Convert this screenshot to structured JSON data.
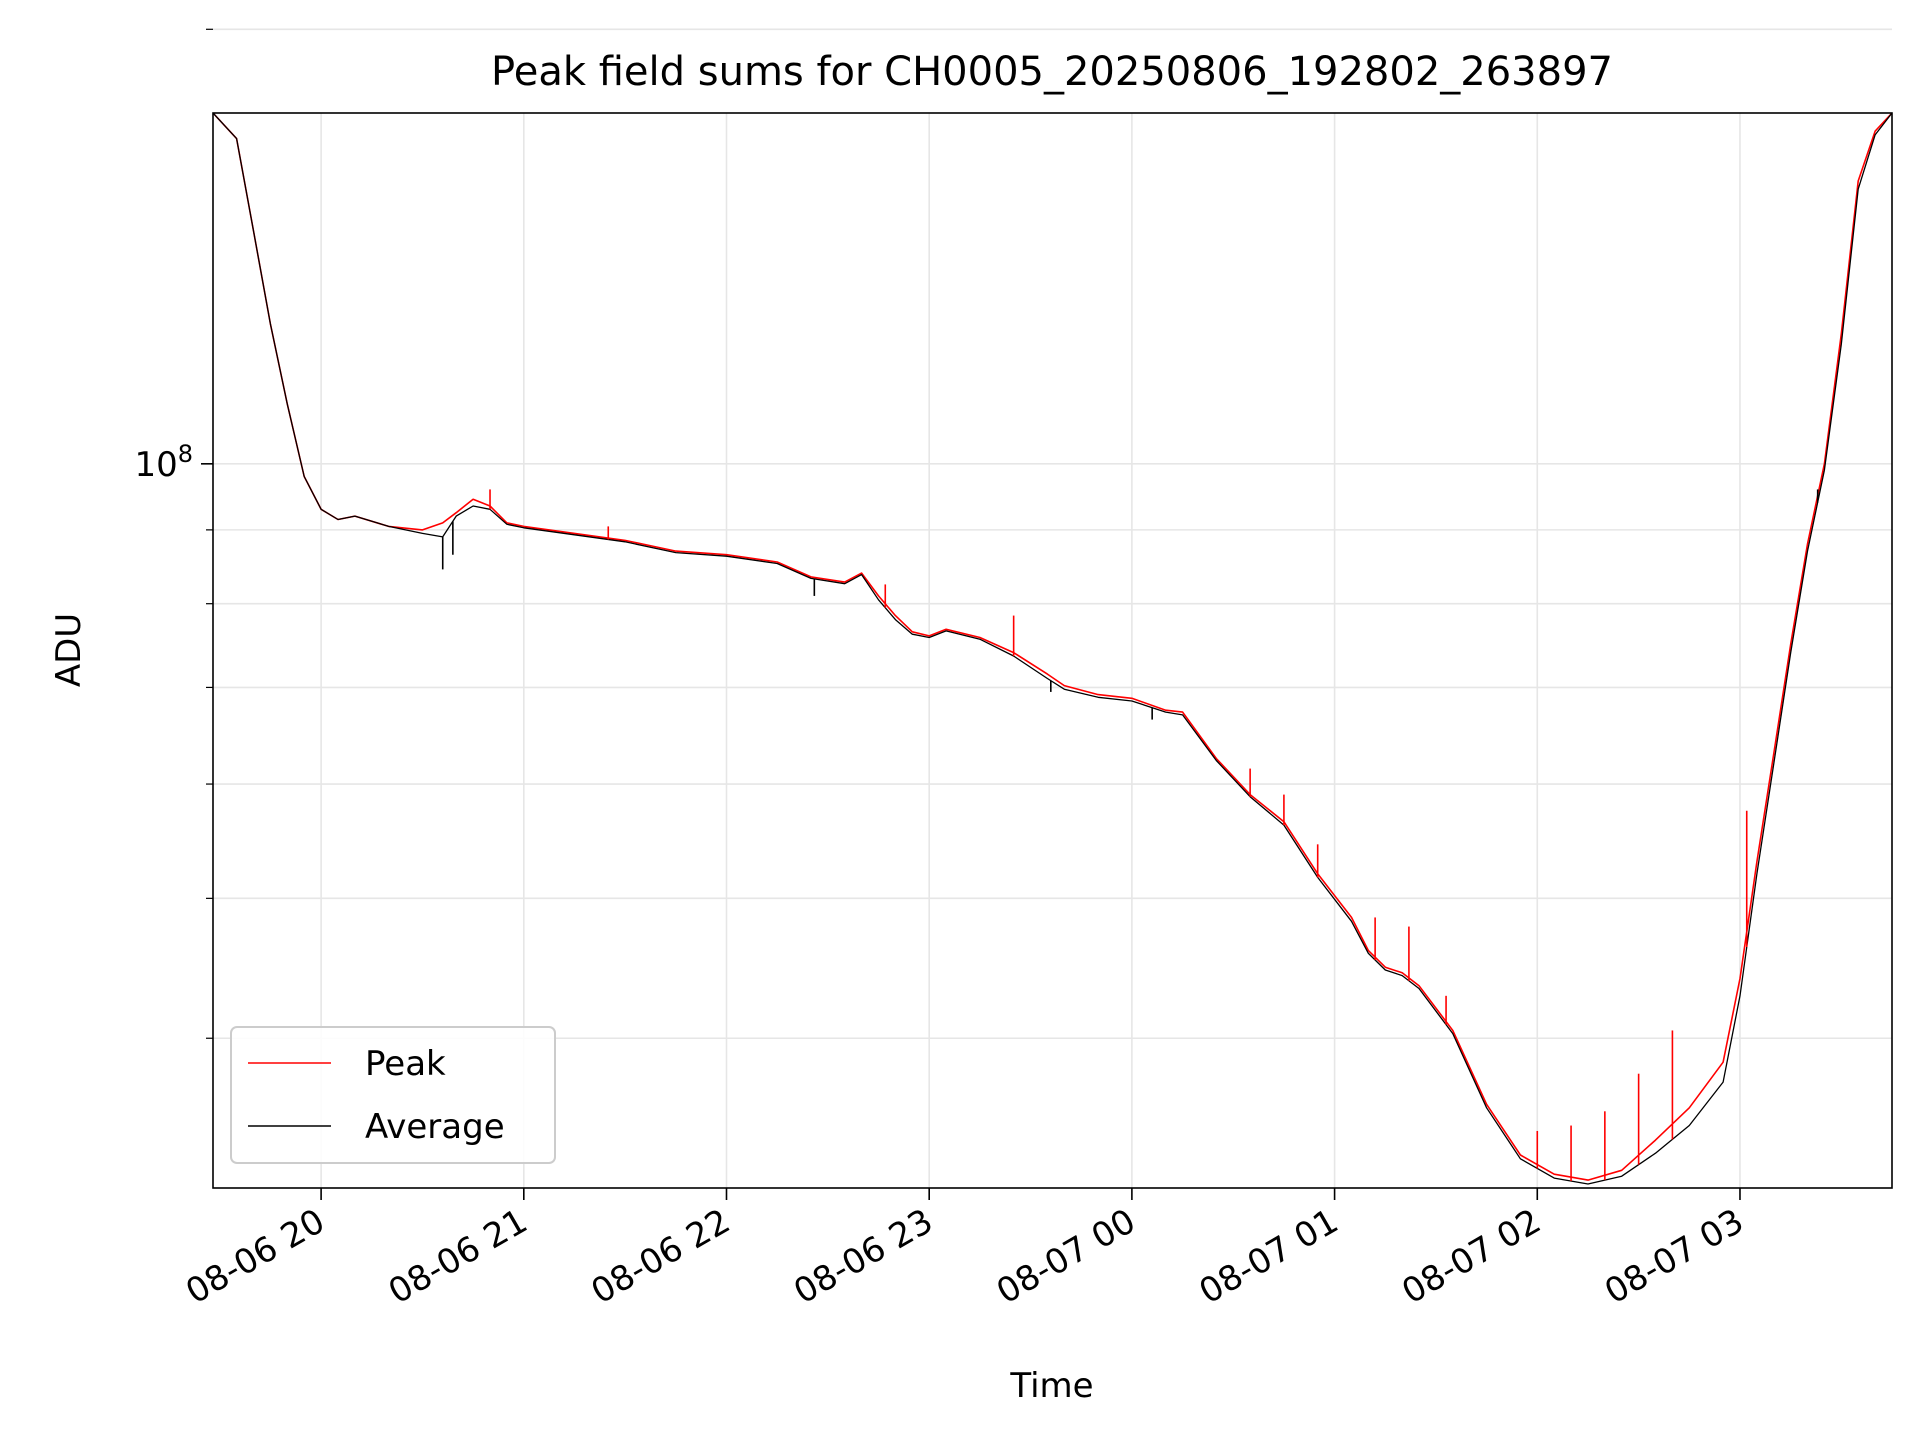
{
  "chart_data": {
    "type": "line",
    "title": "Peak field sums for CH0005_20250806_192802_263897",
    "xlabel": "Time",
    "ylabel": "ADU",
    "yscale": "log",
    "grid": true,
    "legend_position": "lower-left",
    "xlim": [
      "2025-08-06 19:28",
      "2025-08-07 03:45"
    ],
    "ylim": [
      31500000,
      175000000
    ],
    "x_ticks": [
      "2025-08-06 20:00",
      "2025-08-06 21:00",
      "2025-08-06 22:00",
      "2025-08-06 23:00",
      "2025-08-07 00:00",
      "2025-08-07 01:00",
      "2025-08-07 02:00",
      "2025-08-07 03:00"
    ],
    "x_tick_labels": [
      "08-06 20",
      "08-06 21",
      "08-06 22",
      "08-06 23",
      "08-07 00",
      "08-07 01",
      "08-07 02",
      "08-07 03"
    ],
    "y_major_ticks": [
      100000000
    ],
    "y_major_tick_labels": [
      "10",
      "8"
    ],
    "y_minor_ticks": [
      40000000,
      50000000,
      60000000,
      70000000,
      80000000,
      90000000,
      200000000
    ],
    "series": [
      {
        "name": "Peak",
        "color": "#ff0000",
        "x": [
          "2025-08-06 19:28",
          "2025-08-06 19:35",
          "2025-08-06 19:40",
          "2025-08-06 19:45",
          "2025-08-06 19:50",
          "2025-08-06 19:55",
          "2025-08-06 20:00",
          "2025-08-06 20:05",
          "2025-08-06 20:10",
          "2025-08-06 20:20",
          "2025-08-06 20:30",
          "2025-08-06 20:36",
          "2025-08-06 20:40",
          "2025-08-06 20:45",
          "2025-08-06 20:50",
          "2025-08-06 20:55",
          "2025-08-06 21:00",
          "2025-08-06 21:15",
          "2025-08-06 21:30",
          "2025-08-06 21:45",
          "2025-08-06 22:00",
          "2025-08-06 22:15",
          "2025-08-06 22:25",
          "2025-08-06 22:35",
          "2025-08-06 22:40",
          "2025-08-06 22:45",
          "2025-08-06 22:50",
          "2025-08-06 22:55",
          "2025-08-06 23:00",
          "2025-08-06 23:05",
          "2025-08-06 23:15",
          "2025-08-06 23:25",
          "2025-08-06 23:35",
          "2025-08-06 23:40",
          "2025-08-06 23:50",
          "2025-08-07 00:00",
          "2025-08-07 00:10",
          "2025-08-07 00:15",
          "2025-08-07 00:25",
          "2025-08-07 00:35",
          "2025-08-07 00:45",
          "2025-08-07 00:55",
          "2025-08-07 01:05",
          "2025-08-07 01:10",
          "2025-08-07 01:15",
          "2025-08-07 01:20",
          "2025-08-07 01:25",
          "2025-08-07 01:35",
          "2025-08-07 01:45",
          "2025-08-07 01:55",
          "2025-08-07 02:05",
          "2025-08-07 02:15",
          "2025-08-07 02:25",
          "2025-08-07 02:35",
          "2025-08-07 02:45",
          "2025-08-07 02:55",
          "2025-08-07 03:00",
          "2025-08-07 03:05",
          "2025-08-07 03:10",
          "2025-08-07 03:15",
          "2025-08-07 03:20",
          "2025-08-07 03:25",
          "2025-08-07 03:30",
          "2025-08-07 03:35",
          "2025-08-07 03:40",
          "2025-08-07 03:45"
        ],
        "y": [
          175000000,
          168000000,
          145000000,
          125000000,
          110000000,
          98000000,
          93000000,
          91500000,
          92000000,
          90500000,
          90000000,
          91000000,
          92500000,
          94500000,
          93500000,
          91000000,
          90500000,
          89500000,
          88500000,
          87000000,
          86500000,
          85500000,
          83500000,
          82800000,
          84000000,
          81000000,
          78500000,
          76500000,
          76000000,
          76800000,
          75800000,
          74000000,
          71500000,
          70200000,
          69200000,
          68800000,
          67500000,
          67300000,
          62500000,
          59000000,
          56500000,
          52000000,
          48500000,
          46000000,
          44800000,
          44400000,
          43500000,
          40500000,
          36000000,
          33200000,
          32200000,
          31900000,
          32400000,
          34000000,
          35800000,
          38500000,
          44000000,
          53000000,
          63000000,
          75000000,
          88000000,
          100000000,
          123000000,
          157000000,
          170000000,
          175000000
        ],
        "spikes": [
          {
            "x": "2025-08-06 20:50",
            "y": 96000000
          },
          {
            "x": "2025-08-06 21:25",
            "y": 90500000
          },
          {
            "x": "2025-08-06 22:47",
            "y": 82500000
          },
          {
            "x": "2025-08-06 23:25",
            "y": 78500000
          },
          {
            "x": "2025-08-07 00:35",
            "y": 61500000
          },
          {
            "x": "2025-08-07 00:45",
            "y": 59000000
          },
          {
            "x": "2025-08-07 00:55",
            "y": 54500000
          },
          {
            "x": "2025-08-07 01:12",
            "y": 48500000
          },
          {
            "x": "2025-08-07 01:22",
            "y": 47800000
          },
          {
            "x": "2025-08-07 01:33",
            "y": 42800000
          },
          {
            "x": "2025-08-07 02:00",
            "y": 34500000
          },
          {
            "x": "2025-08-07 02:10",
            "y": 34800000
          },
          {
            "x": "2025-08-07 02:20",
            "y": 35600000
          },
          {
            "x": "2025-08-07 02:30",
            "y": 37800000
          },
          {
            "x": "2025-08-07 02:40",
            "y": 40500000
          },
          {
            "x": "2025-08-07 03:02",
            "y": 57500000
          }
        ]
      },
      {
        "name": "Average",
        "color": "#000000",
        "x": [
          "2025-08-06 19:28",
          "2025-08-06 19:35",
          "2025-08-06 19:40",
          "2025-08-06 19:45",
          "2025-08-06 19:50",
          "2025-08-06 19:55",
          "2025-08-06 20:00",
          "2025-08-06 20:05",
          "2025-08-06 20:10",
          "2025-08-06 20:20",
          "2025-08-06 20:30",
          "2025-08-06 20:36",
          "2025-08-06 20:40",
          "2025-08-06 20:45",
          "2025-08-06 20:50",
          "2025-08-06 20:55",
          "2025-08-06 21:00",
          "2025-08-06 21:15",
          "2025-08-06 21:30",
          "2025-08-06 21:45",
          "2025-08-06 22:00",
          "2025-08-06 22:15",
          "2025-08-06 22:25",
          "2025-08-06 22:35",
          "2025-08-06 22:40",
          "2025-08-06 22:45",
          "2025-08-06 22:50",
          "2025-08-06 22:55",
          "2025-08-06 23:00",
          "2025-08-06 23:05",
          "2025-08-06 23:15",
          "2025-08-06 23:25",
          "2025-08-06 23:35",
          "2025-08-06 23:40",
          "2025-08-06 23:50",
          "2025-08-07 00:00",
          "2025-08-07 00:10",
          "2025-08-07 00:15",
          "2025-08-07 00:25",
          "2025-08-07 00:35",
          "2025-08-07 00:45",
          "2025-08-07 00:55",
          "2025-08-07 01:05",
          "2025-08-07 01:10",
          "2025-08-07 01:15",
          "2025-08-07 01:20",
          "2025-08-07 01:25",
          "2025-08-07 01:35",
          "2025-08-07 01:45",
          "2025-08-07 01:55",
          "2025-08-07 02:05",
          "2025-08-07 02:15",
          "2025-08-07 02:25",
          "2025-08-07 02:35",
          "2025-08-07 02:45",
          "2025-08-07 02:55",
          "2025-08-07 03:00",
          "2025-08-07 03:05",
          "2025-08-07 03:10",
          "2025-08-07 03:15",
          "2025-08-07 03:20",
          "2025-08-07 03:25",
          "2025-08-07 03:30",
          "2025-08-07 03:35",
          "2025-08-07 03:40",
          "2025-08-07 03:45"
        ],
        "y": [
          175000000,
          168000000,
          145000000,
          125000000,
          110000000,
          98000000,
          93000000,
          91500000,
          92000000,
          90500000,
          89500000,
          89000000,
          92000000,
          93500000,
          93000000,
          90800000,
          90300000,
          89300000,
          88300000,
          86800000,
          86300000,
          85300000,
          83300000,
          82600000,
          83800000,
          80500000,
          78000000,
          76200000,
          75800000,
          76600000,
          75600000,
          73600000,
          71000000,
          69800000,
          68900000,
          68500000,
          67300000,
          67000000,
          62300000,
          58800000,
          56200000,
          51700000,
          48200000,
          45800000,
          44600000,
          44200000,
          43300000,
          40300000,
          35800000,
          33000000,
          32000000,
          31700000,
          32100000,
          33300000,
          34800000,
          37300000,
          42800000,
          52000000,
          62000000,
          74000000,
          87000000,
          99000000,
          121000000,
          155000000,
          169000000,
          175000000
        ],
        "dips": [
          {
            "x": "2025-08-06 20:36",
            "y": 84500000
          },
          {
            "x": "2025-08-06 20:39",
            "y": 86500000
          },
          {
            "x": "2025-08-06 22:26",
            "y": 81000000
          },
          {
            "x": "2025-08-06 23:36",
            "y": 69500000
          },
          {
            "x": "2025-08-07 00:06",
            "y": 66500000
          },
          {
            "x": "2025-08-07 03:23",
            "y": 96000000
          }
        ]
      }
    ]
  }
}
